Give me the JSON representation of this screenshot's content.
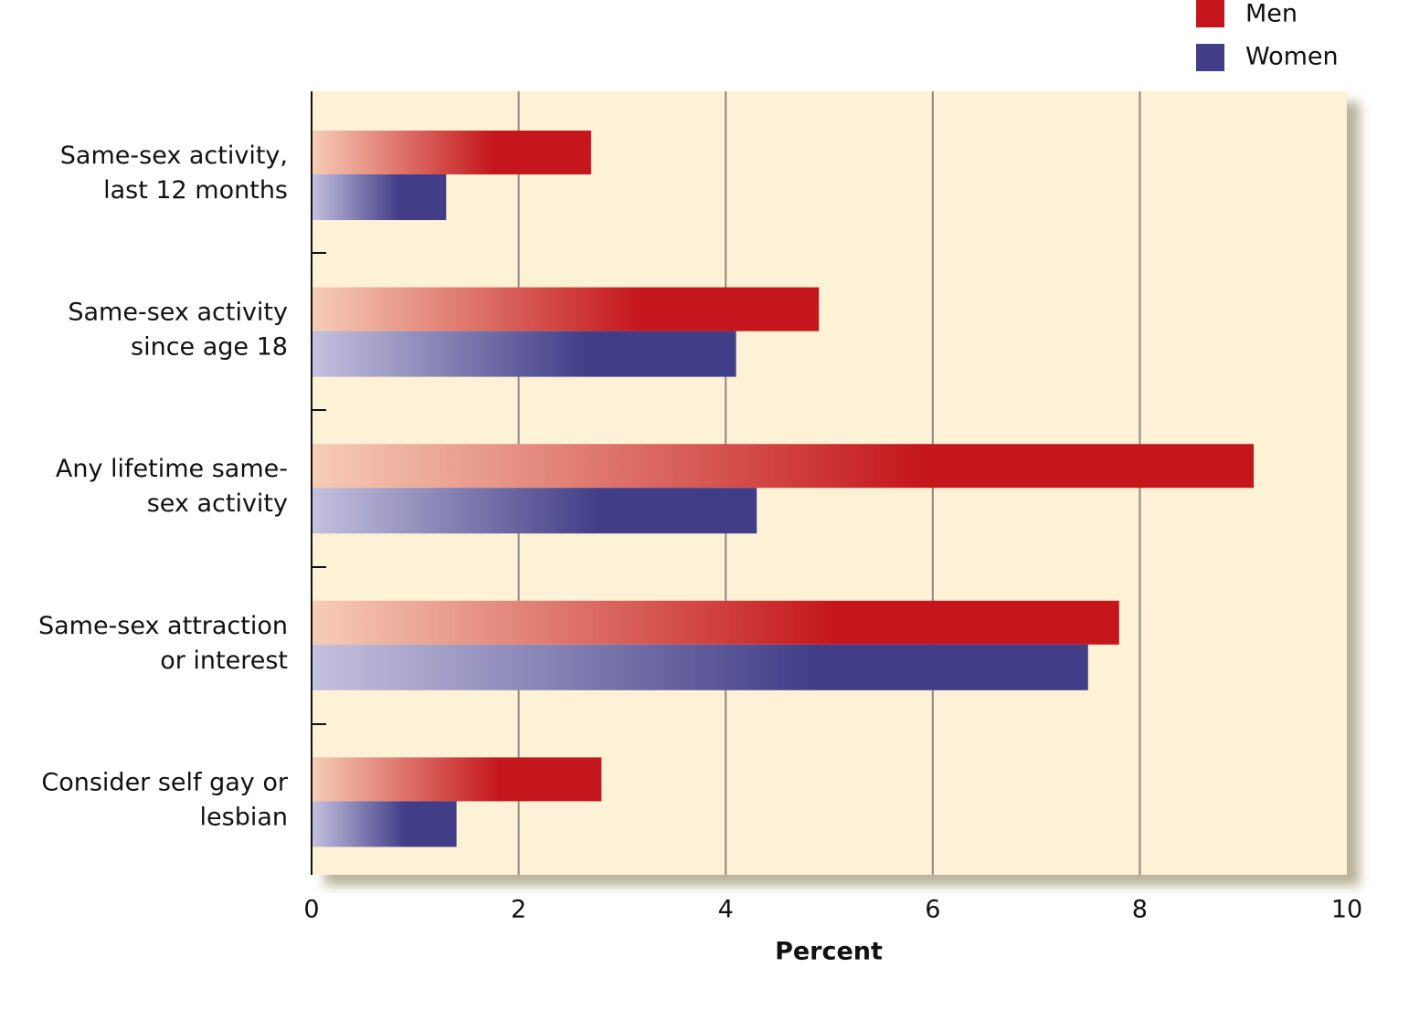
{
  "chart_data": {
    "type": "hbar",
    "categories": [
      [
        "Same-sex activity,",
        "last 12 months"
      ],
      [
        "Same-sex activity",
        "since age 18"
      ],
      [
        "Any lifetime same-",
        "sex activity"
      ],
      [
        "Same-sex attraction",
        "or interest"
      ],
      [
        "Consider self gay or",
        "lesbian"
      ]
    ],
    "series": [
      {
        "name": "Men",
        "color": "#c4161c",
        "values": [
          2.7,
          4.9,
          9.1,
          7.8,
          2.8
        ]
      },
      {
        "name": "Women",
        "color": "#413d87",
        "values": [
          1.3,
          4.1,
          4.3,
          7.5,
          1.4
        ]
      }
    ],
    "x_label": "Percent",
    "xlim": [
      0,
      10
    ],
    "xticks": [
      0,
      2,
      4,
      6,
      8,
      10
    ],
    "grid": true
  }
}
